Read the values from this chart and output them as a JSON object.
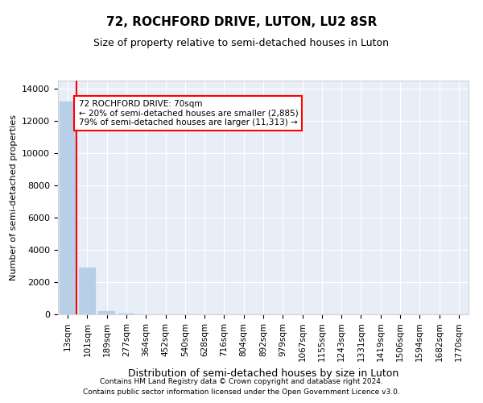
{
  "title": "72, ROCHFORD DRIVE, LUTON, LU2 8SR",
  "subtitle": "Size of property relative to semi-detached houses in Luton",
  "xlabel": "Distribution of semi-detached houses by size in Luton",
  "ylabel": "Number of semi-detached properties",
  "categories": [
    "13sqm",
    "101sqm",
    "189sqm",
    "277sqm",
    "364sqm",
    "452sqm",
    "540sqm",
    "628sqm",
    "716sqm",
    "804sqm",
    "892sqm",
    "979sqm",
    "1067sqm",
    "1155sqm",
    "1243sqm",
    "1331sqm",
    "1419sqm",
    "1506sqm",
    "1594sqm",
    "1682sqm",
    "1770sqm"
  ],
  "values": [
    13198,
    2920,
    200,
    30,
    5,
    2,
    1,
    1,
    0,
    0,
    0,
    0,
    0,
    0,
    0,
    0,
    0,
    0,
    0,
    0,
    0
  ],
  "bar_color": "#b8cfe8",
  "red_line_x": 0.43,
  "annotation_text": "72 ROCHFORD DRIVE: 70sqm\n← 20% of semi-detached houses are smaller (2,885)\n79% of semi-detached houses are larger (11,313) →",
  "annotation_box_color": "white",
  "annotation_box_edgecolor": "red",
  "red_line_color": "red",
  "ylim": [
    0,
    14500
  ],
  "yticks": [
    0,
    2000,
    4000,
    6000,
    8000,
    10000,
    12000,
    14000
  ],
  "background_color": "#e8eef8",
  "grid_color": "white",
  "footer1": "Contains HM Land Registry data © Crown copyright and database right 2024.",
  "footer2": "Contains public sector information licensed under the Open Government Licence v3.0."
}
